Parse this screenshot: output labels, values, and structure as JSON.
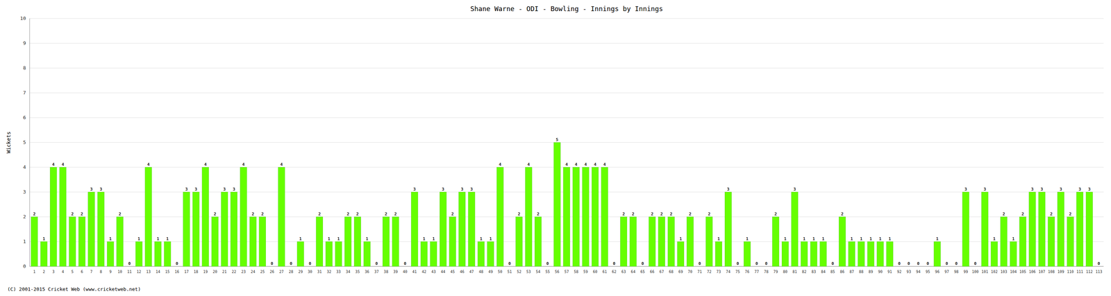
{
  "chart_data": {
    "type": "bar",
    "title": "Shane Warne - ODI - Bowling - Innings by Innings",
    "ylabel": "Wickets",
    "annotations": [
      "(C) 2001-2015 Cricket Web (www.cricketweb.net)"
    ],
    "categories": [
      "1",
      "2",
      "3",
      "4",
      "5",
      "6",
      "7",
      "8",
      "9",
      "10",
      "11",
      "12",
      "13",
      "14",
      "15",
      "16",
      "17",
      "18",
      "19",
      "20",
      "21",
      "22",
      "23",
      "24",
      "25",
      "26",
      "27",
      "28",
      "29",
      "30",
      "31",
      "32",
      "33",
      "34",
      "35",
      "36",
      "37",
      "38",
      "39",
      "40",
      "41",
      "42",
      "43",
      "44",
      "45",
      "46",
      "47",
      "48",
      "49",
      "50",
      "51",
      "52",
      "53",
      "54",
      "55",
      "56",
      "57",
      "58",
      "59",
      "60",
      "61",
      "62",
      "63",
      "64",
      "65",
      "66",
      "67",
      "68",
      "69",
      "70",
      "71",
      "72",
      "73",
      "74",
      "75",
      "76",
      "77",
      "78",
      "79",
      "80",
      "81",
      "82",
      "83",
      "84",
      "85",
      "86",
      "87",
      "88",
      "89",
      "90",
      "91",
      "92",
      "93",
      "94",
      "95",
      "96",
      "97",
      "98",
      "99",
      "100",
      "101",
      "102",
      "103",
      "104",
      "105",
      "106",
      "107",
      "108",
      "109",
      "110",
      "111",
      "112",
      "113"
    ],
    "values": [
      2,
      1,
      4,
      4,
      2,
      2,
      3,
      3,
      1,
      2,
      0,
      1,
      4,
      1,
      1,
      0,
      3,
      3,
      4,
      2,
      3,
      3,
      4,
      2,
      2,
      0,
      4,
      0,
      1,
      0,
      2,
      1,
      1,
      2,
      2,
      1,
      0,
      2,
      2,
      0,
      3,
      1,
      1,
      3,
      2,
      3,
      3,
      1,
      1,
      4,
      0,
      2,
      4,
      2,
      0,
      5,
      4,
      4,
      4,
      4,
      4,
      0,
      2,
      2,
      0,
      2,
      2,
      2,
      1,
      2,
      0,
      2,
      1,
      3,
      0,
      1,
      0,
      0,
      2,
      1,
      3,
      1,
      1,
      1,
      0,
      2,
      1,
      1,
      1,
      1,
      1,
      0,
      0,
      0,
      0,
      1,
      0,
      0,
      3,
      0,
      3,
      1,
      2,
      1,
      2,
      3,
      3,
      2,
      3,
      2,
      3,
      3,
      0
    ],
    "color": "#66ff00",
    "ylim": [
      0,
      10
    ],
    "yticks": [
      0,
      1,
      2,
      3,
      4,
      5,
      6,
      7,
      8,
      9,
      10
    ],
    "grid": true,
    "data_labels": true
  }
}
